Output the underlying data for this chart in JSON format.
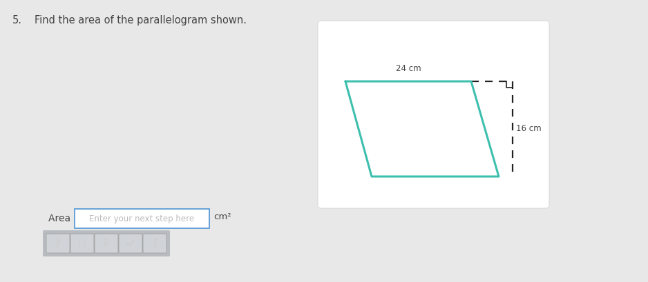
{
  "bg_color": "#e8e8e8",
  "card_bg": "#ffffff",
  "question_number": "5.",
  "question_text": "Find the area of the parallelogram shown.",
  "para_color": "#3dbfad",
  "para_linewidth": 2.2,
  "dashed_color": "#222222",
  "dashed_linewidth": 1.6,
  "label_24": "24 cm",
  "label_16": "16 cm",
  "input_label": "Area =",
  "input_placeholder": "Enter your next step here",
  "input_unit": "cm²",
  "font_color": "#444444",
  "question_fontsize": 10.5,
  "label_fontsize": 8.5
}
